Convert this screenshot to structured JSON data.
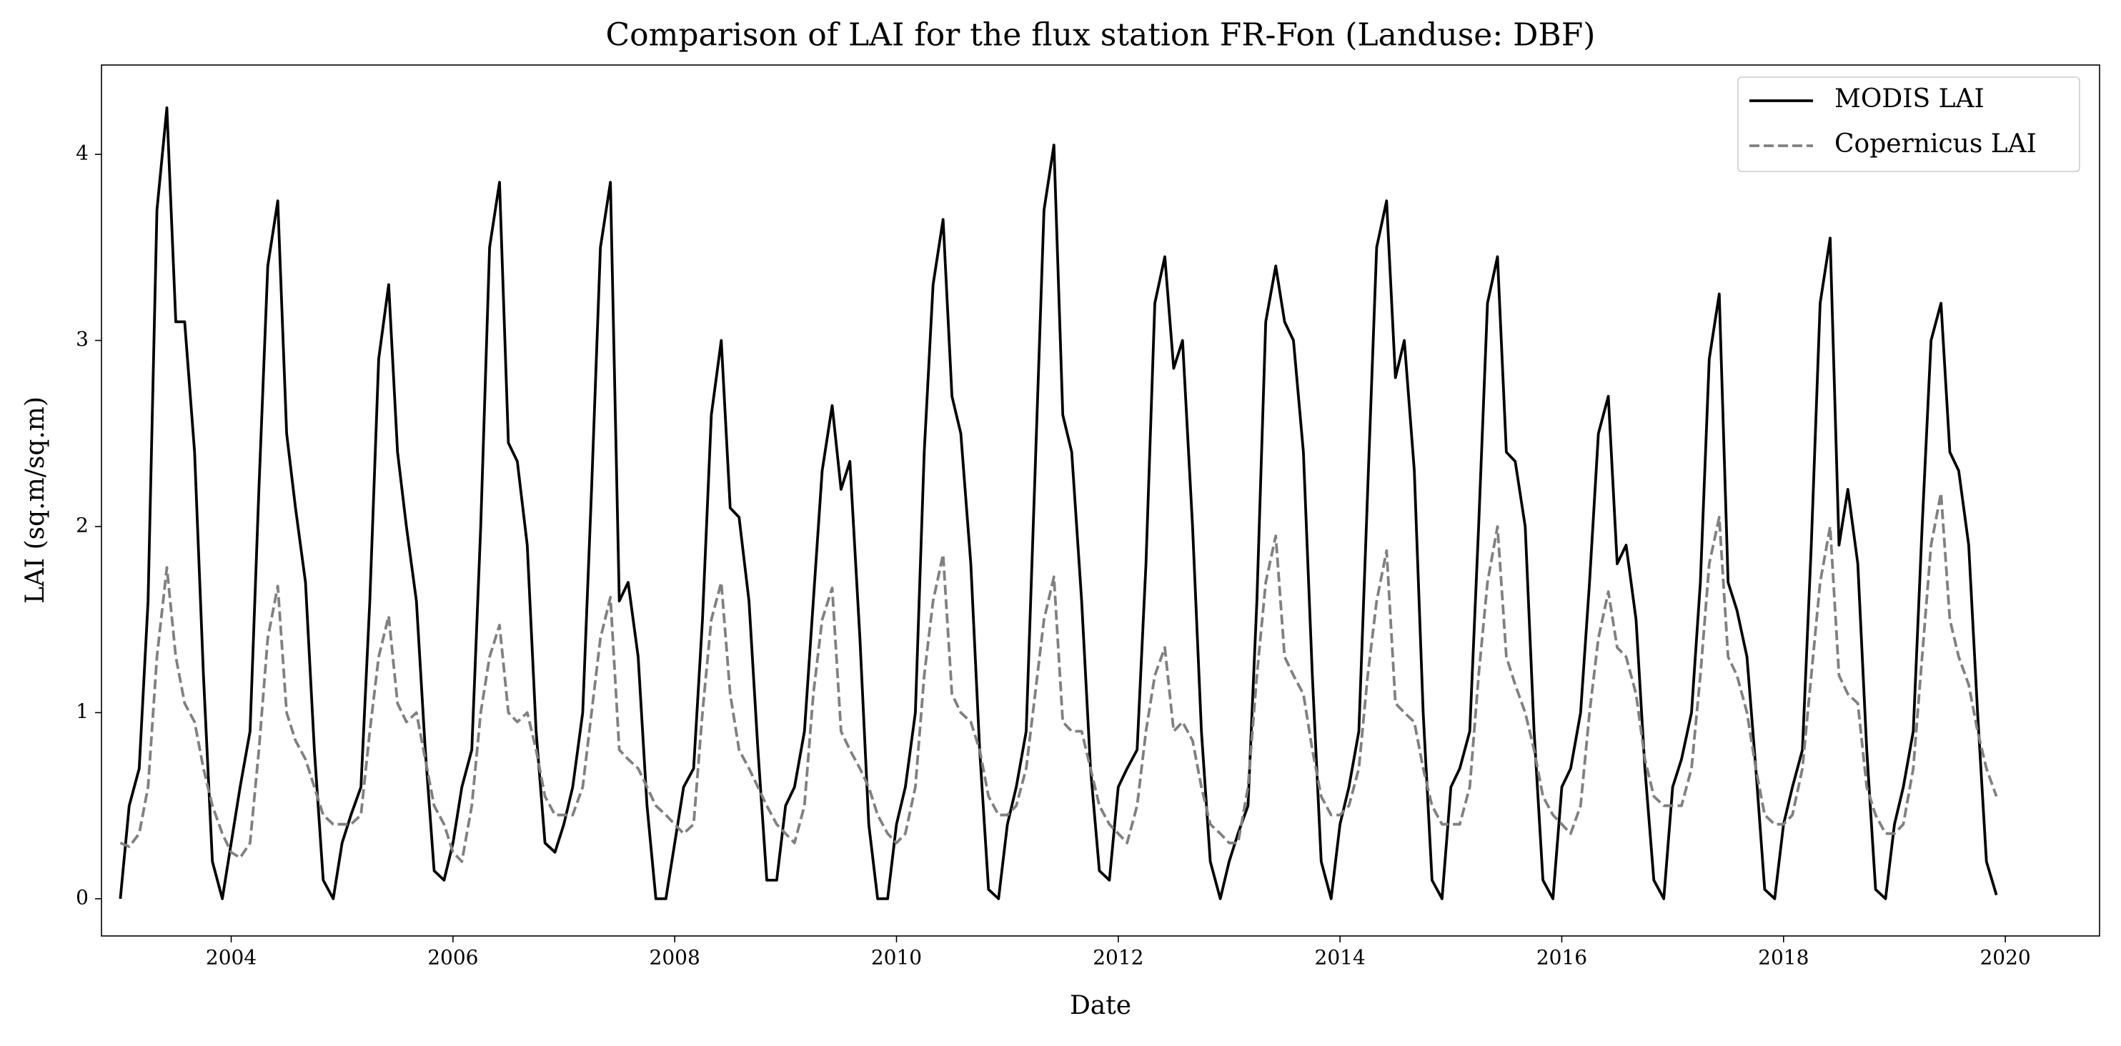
{
  "chart_data": {
    "type": "line",
    "title": "Comparison of LAI for the flux station FR-Fon (Landuse: DBF)",
    "x_label": "Date",
    "y_label": "LAI (sq.m/sq.m)",
    "x": [
      2003.0,
      2003.08,
      2003.17,
      2003.25,
      2003.33,
      2003.42,
      2003.5,
      2003.58,
      2003.67,
      2003.75,
      2003.83,
      2003.92,
      2004.0,
      2004.08,
      2004.17,
      2004.25,
      2004.33,
      2004.42,
      2004.5,
      2004.58,
      2004.67,
      2004.75,
      2004.83,
      2004.92,
      2005.0,
      2005.08,
      2005.17,
      2005.25,
      2005.33,
      2005.42,
      2005.5,
      2005.58,
      2005.67,
      2005.75,
      2005.83,
      2005.92,
      2006.0,
      2006.08,
      2006.17,
      2006.25,
      2006.33,
      2006.42,
      2006.5,
      2006.58,
      2006.67,
      2006.75,
      2006.83,
      2006.92,
      2007.0,
      2007.08,
      2007.17,
      2007.25,
      2007.33,
      2007.42,
      2007.5,
      2007.58,
      2007.67,
      2007.75,
      2007.83,
      2007.92,
      2008.0,
      2008.08,
      2008.17,
      2008.25,
      2008.33,
      2008.42,
      2008.5,
      2008.58,
      2008.67,
      2008.75,
      2008.83,
      2008.92,
      2009.0,
      2009.08,
      2009.17,
      2009.25,
      2009.33,
      2009.42,
      2009.5,
      2009.58,
      2009.67,
      2009.75,
      2009.83,
      2009.92,
      2010.0,
      2010.08,
      2010.17,
      2010.25,
      2010.33,
      2010.42,
      2010.5,
      2010.58,
      2010.67,
      2010.75,
      2010.83,
      2010.92,
      2011.0,
      2011.08,
      2011.17,
      2011.25,
      2011.33,
      2011.42,
      2011.5,
      2011.58,
      2011.67,
      2011.75,
      2011.83,
      2011.92,
      2012.0,
      2012.08,
      2012.17,
      2012.25,
      2012.33,
      2012.42,
      2012.5,
      2012.58,
      2012.67,
      2012.75,
      2012.83,
      2012.92,
      2013.0,
      2013.08,
      2013.17,
      2013.25,
      2013.33,
      2013.42,
      2013.5,
      2013.58,
      2013.67,
      2013.75,
      2013.83,
      2013.92,
      2014.0,
      2014.08,
      2014.17,
      2014.25,
      2014.33,
      2014.42,
      2014.5,
      2014.58,
      2014.67,
      2014.75,
      2014.83,
      2014.92,
      2015.0,
      2015.08,
      2015.17,
      2015.25,
      2015.33,
      2015.42,
      2015.5,
      2015.58,
      2015.67,
      2015.75,
      2015.83,
      2015.92,
      2016.0,
      2016.08,
      2016.17,
      2016.25,
      2016.33,
      2016.42,
      2016.5,
      2016.58,
      2016.67,
      2016.75,
      2016.83,
      2016.92,
      2017.0,
      2017.08,
      2017.17,
      2017.25,
      2017.33,
      2017.42,
      2017.5,
      2017.58,
      2017.67,
      2017.75,
      2017.83,
      2017.92,
      2018.0,
      2018.08,
      2018.17,
      2018.25,
      2018.33,
      2018.42,
      2018.5,
      2018.58,
      2018.67,
      2018.75,
      2018.83,
      2018.92,
      2019.0,
      2019.08,
      2019.17,
      2019.25,
      2019.33,
      2019.42,
      2019.5,
      2019.58,
      2019.67,
      2019.75,
      2019.83,
      2019.92
    ],
    "series": [
      {
        "name": "MODIS LAI",
        "color": "#000000",
        "dashed": false,
        "values": [
          0.0,
          0.5,
          0.7,
          1.6,
          3.7,
          4.25,
          3.1,
          3.1,
          2.4,
          1.2,
          0.2,
          0.0,
          0.3,
          0.6,
          0.9,
          2.2,
          3.4,
          3.75,
          2.5,
          2.1,
          1.7,
          0.8,
          0.1,
          0.0,
          0.3,
          0.45,
          0.6,
          1.6,
          2.9,
          3.3,
          2.4,
          2.0,
          1.6,
          0.8,
          0.15,
          0.1,
          0.3,
          0.6,
          0.8,
          2.0,
          3.5,
          3.85,
          2.45,
          2.35,
          1.9,
          0.9,
          0.3,
          0.25,
          0.4,
          0.6,
          1.0,
          2.2,
          3.5,
          3.85,
          1.6,
          1.7,
          1.3,
          0.5,
          0.0,
          0.0,
          0.3,
          0.6,
          0.7,
          1.5,
          2.6,
          3.0,
          2.1,
          2.05,
          1.6,
          0.8,
          0.1,
          0.1,
          0.5,
          0.6,
          0.9,
          1.6,
          2.3,
          2.65,
          2.2,
          2.35,
          1.4,
          0.4,
          0.0,
          0.0,
          0.4,
          0.6,
          1.0,
          2.4,
          3.3,
          3.65,
          2.7,
          2.5,
          1.8,
          0.8,
          0.05,
          0.0,
          0.4,
          0.6,
          0.9,
          2.3,
          3.7,
          4.05,
          2.6,
          2.4,
          1.6,
          0.7,
          0.15,
          0.1,
          0.6,
          0.7,
          0.8,
          1.8,
          3.2,
          3.45,
          2.85,
          3.0,
          2.0,
          0.9,
          0.2,
          0.0,
          0.2,
          0.35,
          0.5,
          1.6,
          3.1,
          3.4,
          3.1,
          3.0,
          2.4,
          1.2,
          0.2,
          0.0,
          0.4,
          0.6,
          0.9,
          2.2,
          3.5,
          3.75,
          2.8,
          3.0,
          2.3,
          1.0,
          0.1,
          0.0,
          0.6,
          0.7,
          0.9,
          2.0,
          3.2,
          3.45,
          2.4,
          2.35,
          2.0,
          0.9,
          0.1,
          0.0,
          0.6,
          0.7,
          1.0,
          1.7,
          2.5,
          2.7,
          1.8,
          1.9,
          1.5,
          0.7,
          0.1,
          0.0,
          0.6,
          0.75,
          1.0,
          1.7,
          2.9,
          3.25,
          1.7,
          1.55,
          1.3,
          0.7,
          0.05,
          0.0,
          0.4,
          0.6,
          0.8,
          1.9,
          3.2,
          3.55,
          1.9,
          2.2,
          1.8,
          0.8,
          0.05,
          0.0,
          0.4,
          0.6,
          0.9,
          2.0,
          3.0,
          3.2,
          2.4,
          2.3,
          1.9,
          1.0,
          0.2,
          0.02
        ]
      },
      {
        "name": "Copernicus LAI",
        "color": "#808080",
        "dashed": true,
        "values": [
          0.3,
          0.28,
          0.35,
          0.6,
          1.3,
          1.78,
          1.3,
          1.05,
          0.95,
          0.7,
          0.5,
          0.35,
          0.25,
          0.22,
          0.3,
          0.8,
          1.4,
          1.68,
          1.0,
          0.85,
          0.75,
          0.6,
          0.45,
          0.4,
          0.4,
          0.4,
          0.45,
          0.9,
          1.3,
          1.52,
          1.05,
          0.95,
          1.0,
          0.75,
          0.5,
          0.4,
          0.25,
          0.2,
          0.5,
          1.0,
          1.3,
          1.47,
          1.0,
          0.95,
          1.0,
          0.8,
          0.55,
          0.45,
          0.45,
          0.45,
          0.6,
          1.0,
          1.4,
          1.62,
          0.8,
          0.75,
          0.7,
          0.6,
          0.5,
          0.45,
          0.4,
          0.35,
          0.4,
          1.0,
          1.5,
          1.7,
          1.1,
          0.8,
          0.7,
          0.6,
          0.5,
          0.4,
          0.35,
          0.3,
          0.5,
          1.1,
          1.5,
          1.67,
          0.9,
          0.8,
          0.7,
          0.6,
          0.45,
          0.35,
          0.3,
          0.35,
          0.6,
          1.2,
          1.6,
          1.85,
          1.1,
          1.0,
          0.95,
          0.8,
          0.55,
          0.45,
          0.45,
          0.5,
          0.7,
          1.1,
          1.5,
          1.73,
          0.95,
          0.9,
          0.9,
          0.7,
          0.5,
          0.4,
          0.35,
          0.3,
          0.5,
          0.9,
          1.2,
          1.35,
          0.9,
          0.95,
          0.85,
          0.6,
          0.4,
          0.35,
          0.3,
          0.3,
          0.6,
          1.2,
          1.7,
          1.95,
          1.3,
          1.2,
          1.1,
          0.8,
          0.55,
          0.45,
          0.45,
          0.5,
          0.7,
          1.2,
          1.6,
          1.87,
          1.05,
          1.0,
          0.95,
          0.7,
          0.5,
          0.4,
          0.4,
          0.4,
          0.6,
          1.2,
          1.7,
          2.0,
          1.3,
          1.15,
          1.0,
          0.8,
          0.55,
          0.45,
          0.4,
          0.35,
          0.5,
          1.0,
          1.4,
          1.65,
          1.35,
          1.3,
          1.1,
          0.75,
          0.55,
          0.5,
          0.5,
          0.5,
          0.7,
          1.2,
          1.8,
          2.05,
          1.3,
          1.2,
          1.0,
          0.7,
          0.45,
          0.4,
          0.4,
          0.45,
          0.7,
          1.2,
          1.7,
          2.0,
          1.2,
          1.1,
          1.05,
          0.6,
          0.45,
          0.35,
          0.35,
          0.4,
          0.7,
          1.3,
          1.9,
          2.18,
          1.5,
          1.3,
          1.15,
          0.9,
          0.7,
          0.55
        ]
      }
    ],
    "xlim": [
      2002.83,
      2020.85
    ],
    "ylim": [
      -0.2,
      4.48
    ],
    "xticks": [
      2004,
      2006,
      2008,
      2010,
      2012,
      2014,
      2016,
      2018,
      2020
    ],
    "yticks": [
      0,
      1,
      2,
      3,
      4
    ],
    "grid": false,
    "legend": "upper right"
  }
}
